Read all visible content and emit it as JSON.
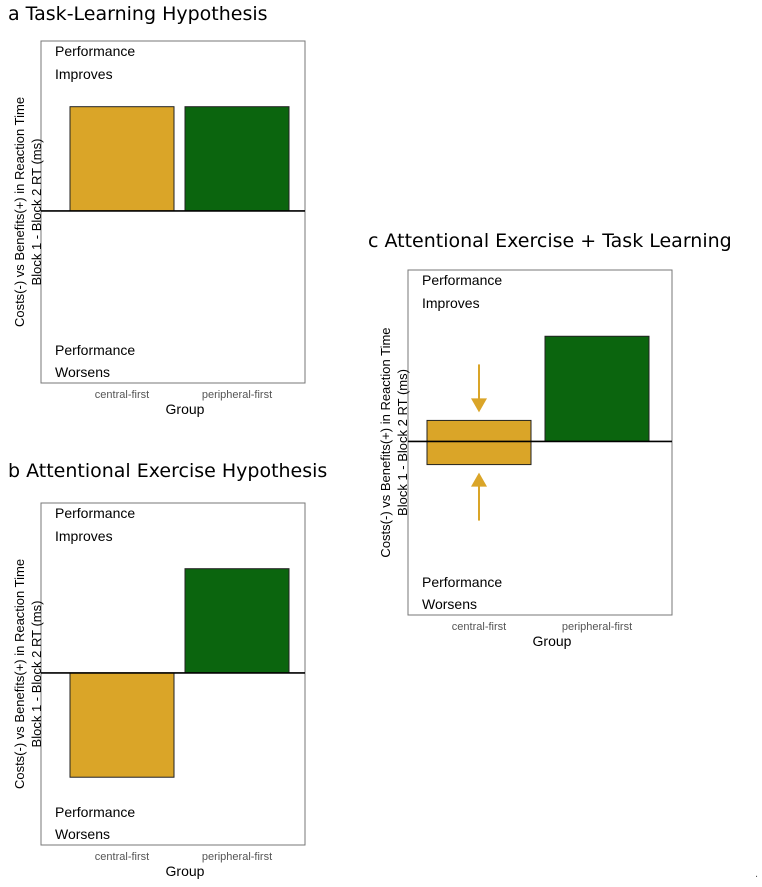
{
  "colors": {
    "central": "#DAA528",
    "peripheral": "#0B650E",
    "frame": "#777777"
  },
  "stray_mark": ".",
  "chart_data": [
    {
      "type": "bar",
      "panel": "a",
      "title": "Task-Learning Hypothesis",
      "categories": [
        "central-first",
        "peripheral-first"
      ],
      "values": [
        1,
        1
      ],
      "ylim": [
        -1.65,
        1.63
      ],
      "xlabel": "Group",
      "ylabel": [
        "Costs(-) vs Benefits(+) in Reaction Time",
        "Block 1 - Block 2 RT (ms)"
      ],
      "annotations": {
        "top": [
          "Performance",
          "Improves"
        ],
        "bottom": [
          "Performance",
          "Worsens"
        ]
      },
      "grid": false
    },
    {
      "type": "bar",
      "panel": "b",
      "title": "Attentional Exercise Hypothesis",
      "categories": [
        "central-first",
        "peripheral-first"
      ],
      "values": [
        -1,
        1
      ],
      "ylim": [
        -1.65,
        1.63
      ],
      "xlabel": "Group",
      "ylabel": [
        "Costs(-) vs Benefits(+) in Reaction Time",
        "Block 1 - Block 2 RT (ms)"
      ],
      "annotations": {
        "top": [
          "Performance",
          "Improves"
        ],
        "bottom": [
          "Performance",
          "Worsens"
        ]
      },
      "grid": false
    },
    {
      "type": "bar",
      "panel": "c",
      "title": "Attentional Exercise + Task Learning",
      "categories": [
        "central-first",
        "peripheral-first"
      ],
      "values": [
        0.2,
        1
      ],
      "error_band": [
        -0.22,
        0.2
      ],
      "arrows": [
        "down",
        "up"
      ],
      "ylim": [
        -1.65,
        1.63
      ],
      "xlabel": "Group",
      "ylabel": [
        "Costs(-) vs Benefits(+) in Reaction Time",
        "Block 1 - Block 2 RT (ms)"
      ],
      "annotations": {
        "top": [
          "Performance",
          "Improves"
        ],
        "bottom": [
          "Performance",
          "Worsens"
        ]
      },
      "grid": false
    }
  ]
}
